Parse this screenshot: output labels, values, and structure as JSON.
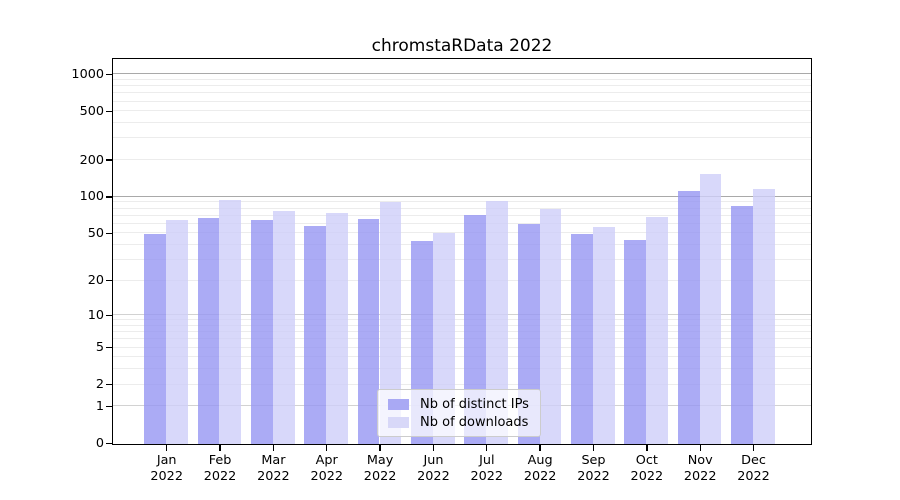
{
  "title": "chromstaRData 2022",
  "legend": {
    "items": [
      {
        "label": "Nb of distinct IPs",
        "color": "#a9a9f4"
      },
      {
        "label": "Nb of downloads",
        "color": "#d8d8f8"
      }
    ]
  },
  "chart_data": {
    "type": "bar",
    "title": "chromstaRData 2022",
    "categories": [
      "Jan",
      "Feb",
      "Mar",
      "Apr",
      "May",
      "Jun",
      "Jul",
      "Aug",
      "Sep",
      "Oct",
      "Nov",
      "Dec"
    ],
    "category_year": "2022",
    "series": [
      {
        "name": "Nb of distinct IPs",
        "color": "rgba(150,150,243,0.8)",
        "legend_color": "#a9a9f4",
        "values": [
          50,
          68,
          65,
          58,
          66,
          44,
          72,
          60,
          50,
          45,
          113,
          85
        ]
      },
      {
        "name": "Nb of downloads",
        "color": "rgba(206,206,249,0.8)",
        "legend_color": "#d8d8f8",
        "values": [
          65,
          96,
          77,
          74,
          92,
          51,
          94,
          81,
          57,
          69,
          156,
          118
        ]
      }
    ],
    "xlabel": "",
    "ylabel": "",
    "yscale": "log10(value+1)",
    "ylim": [
      0,
      1320
    ],
    "y_ticks": [
      0,
      1,
      2,
      5,
      10,
      20,
      50,
      100,
      200,
      500,
      1000
    ],
    "gridlines": {
      "minor": [
        2,
        3,
        4,
        5,
        6,
        7,
        8,
        9,
        20,
        30,
        40,
        50,
        60,
        70,
        80,
        90,
        200,
        300,
        400,
        500,
        600,
        700,
        800,
        900
      ],
      "mid": [
        1,
        10
      ],
      "major": [
        100,
        1000
      ],
      "minor_color": "#ececec",
      "mid_color": "#d2d2d2",
      "major_color": "#a9a9a9"
    },
    "legend_position": "inside-bottom-center",
    "grid": "horizontal"
  }
}
